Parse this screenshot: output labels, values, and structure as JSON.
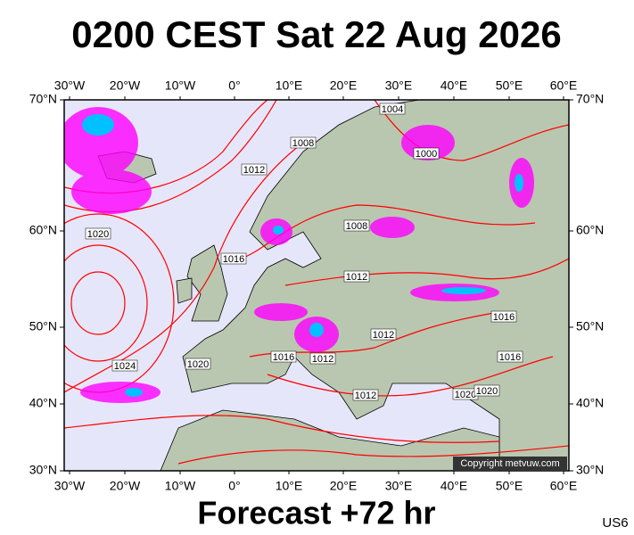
{
  "title": "0200 CEST Sat 22 Aug 2026",
  "subtitle": "Forecast +72 hr",
  "code": "US6",
  "copyright": "Copyright metvuw.com",
  "lon_labels": [
    "30°W",
    "20°W",
    "10°W",
    "0°",
    "10°E",
    "20°E",
    "30°E",
    "40°E",
    "50°E",
    "60°E"
  ],
  "lat_labels": [
    "70°N",
    "60°N",
    "50°N",
    "40°N",
    "30°N"
  ],
  "isobar_labels": [
    1008,
    1012,
    1000,
    1004,
    1020,
    1016,
    1008,
    1012,
    1016,
    1012,
    1024,
    1020,
    1016,
    1012,
    1016,
    1012,
    1020,
    1020
  ]
}
